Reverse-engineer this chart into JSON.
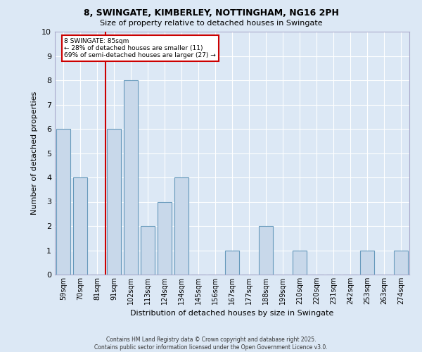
{
  "title1": "8, SWINGATE, KIMBERLEY, NOTTINGHAM, NG16 2PH",
  "title2": "Size of property relative to detached houses in Swingate",
  "xlabel": "Distribution of detached houses by size in Swingate",
  "ylabel": "Number of detached properties",
  "categories": [
    "59sqm",
    "70sqm",
    "81sqm",
    "91sqm",
    "102sqm",
    "113sqm",
    "124sqm",
    "134sqm",
    "145sqm",
    "156sqm",
    "167sqm",
    "177sqm",
    "188sqm",
    "199sqm",
    "210sqm",
    "220sqm",
    "231sqm",
    "242sqm",
    "253sqm",
    "263sqm",
    "274sqm"
  ],
  "values": [
    6,
    4,
    0,
    6,
    8,
    2,
    3,
    4,
    0,
    0,
    1,
    0,
    2,
    0,
    1,
    0,
    0,
    0,
    1,
    0,
    1
  ],
  "bar_color": "#c8d8ea",
  "bar_edge_color": "#6699bb",
  "annotation_text": "8 SWINGATE: 85sqm\n← 28% of detached houses are smaller (11)\n69% of semi-detached houses are larger (27) →",
  "annotation_box_color": "#ffffff",
  "annotation_box_edge": "#cc0000",
  "red_line_color": "#cc0000",
  "background_color": "#dce8f5",
  "plot_bg_color": "#dce8f5",
  "ylim": [
    0,
    10
  ],
  "yticks": [
    0,
    1,
    2,
    3,
    4,
    5,
    6,
    7,
    8,
    9,
    10
  ],
  "footer1": "Contains HM Land Registry data © Crown copyright and database right 2025.",
  "footer2": "Contains public sector information licensed under the Open Government Licence v3.0."
}
